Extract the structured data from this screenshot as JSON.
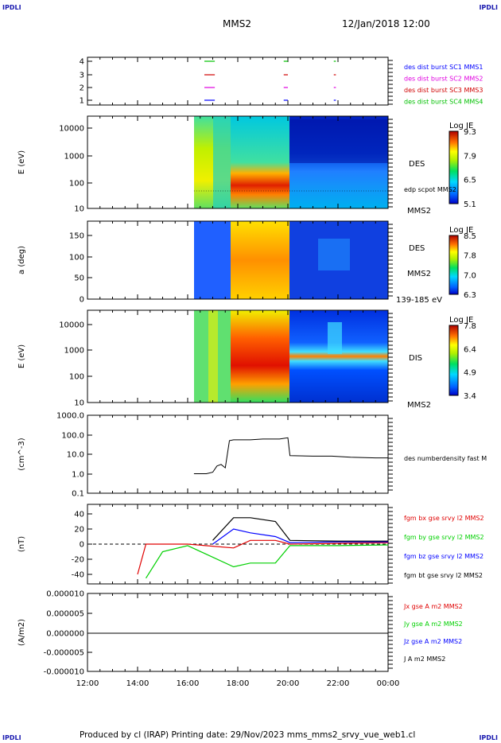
{
  "corners": {
    "top_left": "IPDLI",
    "top_right": "IPDLI",
    "bottom_left": "IPDLI",
    "bottom_right": "IPDLI"
  },
  "header": {
    "mission": "MMS2",
    "datetime": "12/Jan/2018 12:00"
  },
  "footer": {
    "text": "Produced by cl (IRAP)   Printing date: 29/Nov/2023   mms_mms2_srvy_vue_web1.cl"
  },
  "colors": {
    "mms1": "#0000ff",
    "mms2": "#e000e0",
    "mms3": "#d00000",
    "mms4": "#00c000",
    "bx": "#e00000",
    "by": "#00d000",
    "bz": "#0000ff",
    "bt": "#000000"
  },
  "chart_data": [
    {
      "type": "line",
      "panel": "availability",
      "yticks": [
        "4",
        "3",
        "2",
        "1"
      ],
      "series": [
        {
          "name": "des dist burst SC1 MMS1",
          "level": 1,
          "intervals": [
            [
              "16:40",
              "17:05"
            ],
            [
              "19:50",
              "20:00"
            ],
            [
              "21:50",
              "21:55"
            ]
          ]
        },
        {
          "name": "des dist burst SC2 MMS2",
          "level": 2,
          "intervals": [
            [
              "16:40",
              "17:05"
            ],
            [
              "19:50",
              "20:00"
            ],
            [
              "21:50",
              "21:55"
            ]
          ]
        },
        {
          "name": "des dist burst SC3 MMS3",
          "level": 3,
          "intervals": [
            [
              "16:40",
              "17:05"
            ],
            [
              "19:50",
              "20:00"
            ],
            [
              "21:50",
              "21:55"
            ]
          ]
        },
        {
          "name": "des dist burst SC4 MMS4",
          "level": 4,
          "intervals": [
            [
              "16:40",
              "17:05"
            ],
            [
              "19:50",
              "20:00"
            ],
            [
              "21:50",
              "21:55"
            ]
          ]
        }
      ]
    },
    {
      "type": "heatmap",
      "panel": "des-energy",
      "ylabel": "E (eV)",
      "yticks": [
        "10000",
        "1000",
        "100",
        "10"
      ],
      "instrument": "DES",
      "overlay_label": "edp scpot MMS2",
      "probe": "MMS2",
      "colorbar": {
        "title": "Log JE",
        "ticks": [
          "9.3",
          "7.9",
          "6.5",
          "5.1"
        ]
      },
      "data_start": "16:15"
    },
    {
      "type": "heatmap",
      "panel": "des-pitch",
      "ylabel": "a (deg)",
      "yticks": [
        "150",
        "100",
        "50",
        "0"
      ],
      "instrument": "DES",
      "probe": "MMS2",
      "energy_range": "139-185 eV",
      "colorbar": {
        "title": "Log JE",
        "ticks": [
          "8.5",
          "7.8",
          "7.0",
          "6.3"
        ]
      },
      "data_start": "16:15"
    },
    {
      "type": "heatmap",
      "panel": "dis-energy",
      "ylabel": "E (eV)",
      "yticks": [
        "10000",
        "1000",
        "100",
        "10"
      ],
      "instrument": "DIS",
      "probe": "MMS2",
      "colorbar": {
        "title": "Log JE",
        "ticks": [
          "7.8",
          "6.4",
          "4.9",
          "3.4"
        ]
      },
      "data_start": "16:15"
    },
    {
      "type": "line",
      "panel": "density",
      "ylabel": "(cm^-3)",
      "yticks": [
        "1000.0",
        "100.0",
        "10.0",
        "1.0",
        "0.1"
      ],
      "series": [
        {
          "name": "des numberdensity fast M",
          "x": [
            "16:15",
            "16:45",
            "17:00",
            "17:10",
            "17:20",
            "17:30",
            "17:40",
            "17:50",
            "18:30",
            "19:00",
            "19:40",
            "20:00",
            "20:05",
            "21:00",
            "21:45",
            "22:30",
            "23:30",
            "00:00"
          ],
          "y": [
            1.0,
            1.0,
            1.2,
            2.5,
            3.0,
            2.0,
            50,
            55,
            55,
            60,
            60,
            70,
            8.5,
            8.0,
            8.0,
            7.0,
            6.5,
            6.5
          ]
        }
      ]
    },
    {
      "type": "line",
      "panel": "magnetic-field",
      "ylabel": "(nT)",
      "yticks": [
        "40",
        "20",
        "0",
        "-20",
        "-40"
      ],
      "series": [
        {
          "name": "fgm bx gse srvy l2 MMS2",
          "x": [
            "14:00",
            "14:20",
            "16:00",
            "17:50",
            "18:30",
            "19:30",
            "20:05",
            "22:00",
            "00:00"
          ],
          "y": [
            -40,
            0,
            0,
            -5,
            5,
            5,
            0,
            1,
            2
          ]
        },
        {
          "name": "fgm by gse srvy l2 MMS2",
          "x": [
            "14:20",
            "15:00",
            "16:00",
            "17:50",
            "18:30",
            "19:30",
            "20:05",
            "22:00",
            "00:00"
          ],
          "y": [
            -45,
            -10,
            -2,
            -30,
            -25,
            -25,
            -2,
            -2,
            -1
          ]
        },
        {
          "name": "fgm bz gse srvy l2 MMS2",
          "x": [
            "17:00",
            "17:50",
            "18:30",
            "19:30",
            "20:05",
            "22:00",
            "00:00"
          ],
          "y": [
            0,
            20,
            15,
            10,
            2,
            3,
            3
          ]
        },
        {
          "name": "fgm bt gse srvy l2 MMS2",
          "x": [
            "17:00",
            "17:50",
            "18:30",
            "19:30",
            "20:05",
            "22:00",
            "00:00"
          ],
          "y": [
            5,
            35,
            35,
            30,
            5,
            4,
            4
          ]
        }
      ]
    },
    {
      "type": "line",
      "panel": "current-density",
      "ylabel": "(A/m2)",
      "yticks": [
        "0.000010",
        "0.000005",
        "0.000000",
        "-0.000005",
        "-0.000010"
      ],
      "xticks": [
        "12:00",
        "14:00",
        "16:00",
        "18:00",
        "20:00",
        "22:00",
        "00:00"
      ],
      "series": [
        {
          "name": "Jx gse A m2 MMS2"
        },
        {
          "name": "Jy gse A m2 MMS2"
        },
        {
          "name": "Jz gse A m2 MMS2"
        },
        {
          "name": "J A m2 MMS2"
        }
      ]
    }
  ]
}
